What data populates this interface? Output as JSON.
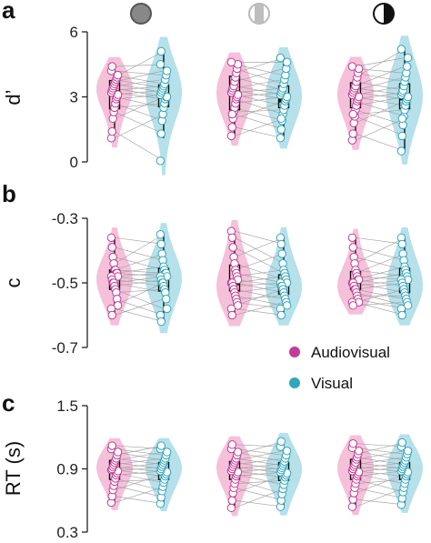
{
  "colors": {
    "audiovisual": "#c23c96",
    "visual": "#2fa7bd",
    "audiovisual_fill": "#f3b6d3",
    "visual_fill": "#a9dbe6",
    "pair_line": "#9e9e9e",
    "axis": "#222222"
  },
  "header_icons": [
    "filled-gray-circle-icon",
    "striped-gray-circle-icon",
    "half-black-circle-icon"
  ],
  "legend": {
    "items": [
      {
        "label": "Audiovisual",
        "color": "#c23c96"
      },
      {
        "label": "Visual",
        "color": "#2fa7bd"
      }
    ],
    "placement": "bottom-right of panel b"
  },
  "chart_data": [
    {
      "type": "box-violin-paired",
      "panel": "a",
      "ylabel": "d’",
      "ylim": [
        0,
        6
      ],
      "yticks": [
        "0",
        "3",
        "6"
      ],
      "yticks_values": [
        0,
        3,
        6
      ],
      "groups": [
        {
          "audiovisual": {
            "median": 3.2,
            "q1": 2.45,
            "q3": 3.75,
            "whisker_low": 1.3,
            "whisker_high": 4.4,
            "points": [
              1.1,
              1.4,
              2.0,
              2.3,
              2.5,
              2.7,
              2.9,
              3.0,
              3.1,
              3.2,
              3.3,
              3.4,
              3.5,
              3.6,
              3.7,
              3.8,
              3.9,
              4.0,
              4.2,
              4.4
            ]
          },
          "visual": {
            "median": 3.0,
            "q1": 2.55,
            "q3": 3.55,
            "whisker_low": 1.1,
            "whisker_high": 5.1,
            "points": [
              0.05,
              1.3,
              1.9,
              2.2,
              2.5,
              2.7,
              2.9,
              3.0,
              3.0,
              3.1,
              3.2,
              3.3,
              3.4,
              3.5,
              3.6,
              3.8,
              4.0,
              4.2,
              4.5,
              5.1
            ]
          }
        },
        {
          "audiovisual": {
            "median": 3.2,
            "q1": 2.4,
            "q3": 3.95,
            "whisker_low": 1.1,
            "whisker_high": 4.6,
            "points": [
              1.2,
              1.6,
              2.0,
              2.3,
              2.5,
              2.7,
              2.9,
              3.0,
              3.1,
              3.2,
              3.3,
              3.4,
              3.5,
              3.7,
              3.9,
              4.1,
              4.3,
              4.5,
              4.6,
              2.2
            ]
          },
          "visual": {
            "median": 2.85,
            "q1": 2.5,
            "q3": 3.5,
            "whisker_low": 1.1,
            "whisker_high": 4.8,
            "points": [
              1.1,
              1.5,
              1.9,
              2.2,
              2.4,
              2.6,
              2.8,
              2.9,
              3.0,
              3.1,
              3.2,
              3.3,
              3.4,
              3.6,
              3.8,
              4.0,
              4.3,
              4.6,
              4.8,
              2.0
            ]
          }
        },
        {
          "audiovisual": {
            "median": 3.05,
            "q1": 2.5,
            "q3": 3.65,
            "whisker_low": 1.1,
            "whisker_high": 4.4,
            "points": [
              1.0,
              1.3,
              1.8,
              2.1,
              2.4,
              2.6,
              2.8,
              2.9,
              3.0,
              3.1,
              3.2,
              3.3,
              3.4,
              3.5,
              3.7,
              3.9,
              4.1,
              4.3,
              4.4,
              2.2
            ]
          },
          "visual": {
            "median": 2.95,
            "q1": 2.45,
            "q3": 3.6,
            "whisker_low": 0.5,
            "whisker_high": 5.2,
            "points": [
              0.5,
              1.2,
              1.7,
              2.1,
              2.4,
              2.6,
              2.8,
              2.9,
              3.0,
              3.1,
              3.2,
              3.3,
              3.5,
              3.7,
              3.9,
              4.1,
              4.4,
              4.8,
              5.2,
              2.0
            ]
          }
        }
      ]
    },
    {
      "type": "box-violin-paired",
      "panel": "b",
      "ylabel": "c",
      "ylim": [
        -0.7,
        -0.3
      ],
      "yticks": [
        "-0.3",
        "-0.5",
        "-0.7"
      ],
      "yticks_values": [
        -0.3,
        -0.5,
        -0.7
      ],
      "groups": [
        {
          "audiovisual": {
            "median": -0.47,
            "q1": -0.52,
            "q3": -0.46,
            "whisker_low": -0.6,
            "whisker_high": -0.36,
            "points": [
              -0.36,
              -0.39,
              -0.42,
              -0.44,
              -0.46,
              -0.46,
              -0.47,
              -0.47,
              -0.48,
              -0.48,
              -0.49,
              -0.5,
              -0.5,
              -0.51,
              -0.52,
              -0.53,
              -0.55,
              -0.57,
              -0.58,
              -0.6
            ]
          },
          "visual": {
            "median": -0.48,
            "q1": -0.525,
            "q3": -0.455,
            "whisker_low": -0.62,
            "whisker_high": -0.35,
            "points": [
              -0.35,
              -0.38,
              -0.41,
              -0.43,
              -0.45,
              -0.46,
              -0.47,
              -0.47,
              -0.48,
              -0.48,
              -0.49,
              -0.5,
              -0.5,
              -0.51,
              -0.52,
              -0.53,
              -0.55,
              -0.58,
              -0.6,
              -0.62
            ]
          }
        },
        {
          "audiovisual": {
            "median": -0.5,
            "q1": -0.525,
            "q3": -0.445,
            "whisker_low": -0.6,
            "whisker_high": -0.35,
            "points": [
              -0.34,
              -0.36,
              -0.39,
              -0.42,
              -0.44,
              -0.46,
              -0.47,
              -0.48,
              -0.49,
              -0.5,
              -0.5,
              -0.51,
              -0.52,
              -0.53,
              -0.54,
              -0.55,
              -0.56,
              -0.57,
              -0.58,
              -0.6
            ]
          },
          "visual": {
            "median": -0.505,
            "q1": -0.535,
            "q3": -0.475,
            "whisker_low": -0.6,
            "whisker_high": -0.36,
            "points": [
              -0.36,
              -0.38,
              -0.41,
              -0.44,
              -0.46,
              -0.47,
              -0.48,
              -0.49,
              -0.5,
              -0.5,
              -0.51,
              -0.51,
              -0.52,
              -0.53,
              -0.54,
              -0.55,
              -0.56,
              -0.57,
              -0.58,
              -0.6
            ]
          }
        },
        {
          "audiovisual": {
            "median": -0.495,
            "q1": -0.52,
            "q3": -0.465,
            "whisker_low": -0.57,
            "whisker_high": -0.36,
            "points": [
              -0.36,
              -0.39,
              -0.42,
              -0.44,
              -0.46,
              -0.47,
              -0.48,
              -0.49,
              -0.49,
              -0.5,
              -0.5,
              -0.51,
              -0.52,
              -0.52,
              -0.53,
              -0.54,
              -0.55,
              -0.56,
              -0.56,
              -0.57
            ]
          },
          "visual": {
            "median": -0.49,
            "q1": -0.53,
            "q3": -0.455,
            "whisker_low": -0.6,
            "whisker_high": -0.36,
            "points": [
              -0.36,
              -0.38,
              -0.41,
              -0.43,
              -0.45,
              -0.46,
              -0.47,
              -0.48,
              -0.49,
              -0.49,
              -0.5,
              -0.51,
              -0.52,
              -0.53,
              -0.54,
              -0.55,
              -0.56,
              -0.57,
              -0.58,
              -0.6
            ]
          }
        }
      ]
    },
    {
      "type": "box-violin-paired",
      "panel": "c",
      "ylabel": "RT (s)",
      "ylim": [
        0.3,
        1.5
      ],
      "yticks": [
        "1.5",
        "0.9",
        "0.3"
      ],
      "yticks_values": [
        1.5,
        0.9,
        0.3
      ],
      "groups": [
        {
          "audiovisual": {
            "median": 0.88,
            "q1": 0.8,
            "q3": 0.98,
            "whisker_low": 0.58,
            "whisker_high": 1.12,
            "points": [
              0.58,
              0.64,
              0.7,
              0.74,
              0.78,
              0.81,
              0.84,
              0.86,
              0.88,
              0.89,
              0.9,
              0.92,
              0.94,
              0.96,
              0.98,
              1.0,
              1.03,
              1.06,
              1.09,
              1.12
            ]
          },
          "visual": {
            "median": 0.88,
            "q1": 0.8,
            "q3": 0.96,
            "whisker_low": 0.57,
            "whisker_high": 1.12,
            "points": [
              0.57,
              0.63,
              0.69,
              0.73,
              0.77,
              0.8,
              0.83,
              0.85,
              0.87,
              0.88,
              0.9,
              0.92,
              0.94,
              0.96,
              0.98,
              1.0,
              1.03,
              1.06,
              1.09,
              1.12
            ]
          }
        },
        {
          "audiovisual": {
            "median": 0.87,
            "q1": 0.8,
            "q3": 0.97,
            "whisker_low": 0.53,
            "whisker_high": 1.13,
            "points": [
              0.53,
              0.6,
              0.67,
              0.72,
              0.76,
              0.8,
              0.83,
              0.85,
              0.87,
              0.88,
              0.9,
              0.92,
              0.94,
              0.96,
              0.98,
              1.0,
              1.03,
              1.06,
              1.09,
              1.13
            ]
          },
          "visual": {
            "median": 0.86,
            "q1": 0.79,
            "q3": 0.96,
            "whisker_low": 0.54,
            "whisker_high": 1.16,
            "points": [
              0.54,
              0.6,
              0.66,
              0.71,
              0.75,
              0.79,
              0.82,
              0.84,
              0.86,
              0.87,
              0.89,
              0.91,
              0.93,
              0.95,
              0.97,
              1.0,
              1.03,
              1.07,
              1.11,
              1.16
            ]
          }
        },
        {
          "audiovisual": {
            "median": 0.87,
            "q1": 0.8,
            "q3": 0.99,
            "whisker_low": 0.54,
            "whisker_high": 1.14,
            "points": [
              0.54,
              0.61,
              0.67,
              0.72,
              0.76,
              0.8,
              0.83,
              0.85,
              0.87,
              0.88,
              0.9,
              0.92,
              0.94,
              0.96,
              0.99,
              1.01,
              1.04,
              1.07,
              1.1,
              1.14
            ]
          },
          "visual": {
            "median": 0.87,
            "q1": 0.8,
            "q3": 0.96,
            "whisker_low": 0.56,
            "whisker_high": 1.15,
            "points": [
              0.56,
              0.62,
              0.68,
              0.72,
              0.76,
              0.8,
              0.83,
              0.85,
              0.87,
              0.88,
              0.9,
              0.92,
              0.94,
              0.96,
              0.98,
              1.01,
              1.04,
              1.07,
              1.11,
              1.15
            ]
          }
        }
      ]
    }
  ]
}
